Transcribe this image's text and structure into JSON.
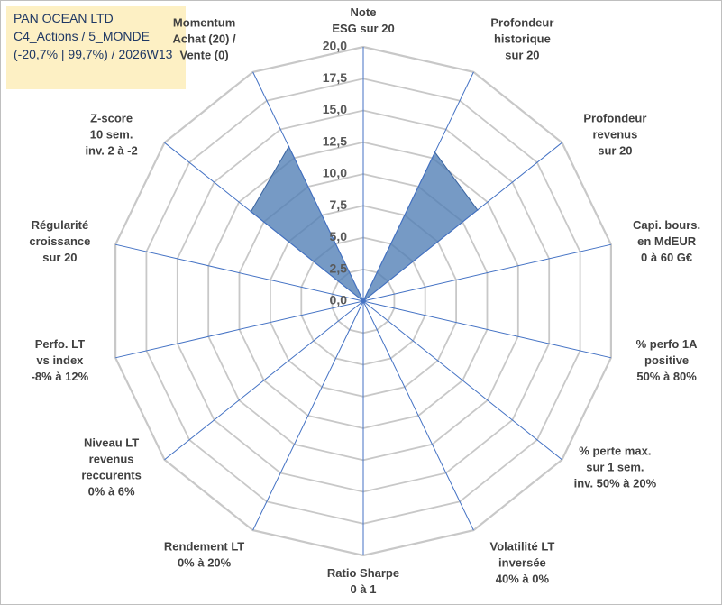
{
  "header": {
    "line1": "PAN OCEAN LTD",
    "line2": "C4_Actions / 5_MONDE",
    "line3": "(-20,7% | 99,7%) / 2026W13"
  },
  "colors": {
    "grid": "#c8c8c8",
    "spoke": "#4472c4",
    "fill": "#4f7eb5",
    "title_bg": "#fdf0c4",
    "title_text": "#1f3864"
  },
  "chart_data": {
    "type": "radar",
    "rmin": 0,
    "rmax": 20,
    "tick_step": 2.5,
    "tick_labels": [
      "0,0",
      "2,5",
      "5,0",
      "7,5",
      "10,0",
      "12,5",
      "15,0",
      "17,5",
      "20,0"
    ],
    "axes": [
      {
        "lines": [
          "Note",
          "ESG sur 20"
        ]
      },
      {
        "lines": [
          "Profondeur",
          "historique",
          "sur 20"
        ]
      },
      {
        "lines": [
          "Profondeur",
          "revenus",
          "sur 20"
        ]
      },
      {
        "lines": [
          "Capi. bours.",
          "en MdEUR",
          "0 à 60 G€"
        ]
      },
      {
        "lines": [
          "% perfo 1A",
          "positive",
          "50% à 80%"
        ]
      },
      {
        "lines": [
          "% perte max.",
          "sur 1 sem.",
          "inv. 50% à 20%"
        ]
      },
      {
        "lines": [
          "Volatilité LT",
          "inversée",
          "40% à 0%"
        ]
      },
      {
        "lines": [
          "Ratio Sharpe",
          "0 à 1"
        ]
      },
      {
        "lines": [
          "Rendement LT",
          "0% à 20%"
        ]
      },
      {
        "lines": [
          "Niveau LT",
          "revenus",
          "reccurents",
          "0% à 6%"
        ]
      },
      {
        "lines": [
          "Perfo. LT",
          "vs index",
          "-8% à 12%"
        ]
      },
      {
        "lines": [
          "Régularité",
          "croissance",
          "sur 20"
        ]
      },
      {
        "lines": [
          "Z-score",
          "10 sem.",
          "inv. 2 à -2"
        ]
      },
      {
        "lines": [
          "Momentum",
          "Achat (20) /",
          "Vente (0)"
        ]
      }
    ],
    "series": [
      {
        "name": "PAN OCEAN LTD",
        "values": [
          0,
          13,
          11.5,
          0,
          0,
          0,
          0,
          0,
          0,
          0,
          0,
          0,
          11.3,
          13.5
        ]
      }
    ]
  }
}
